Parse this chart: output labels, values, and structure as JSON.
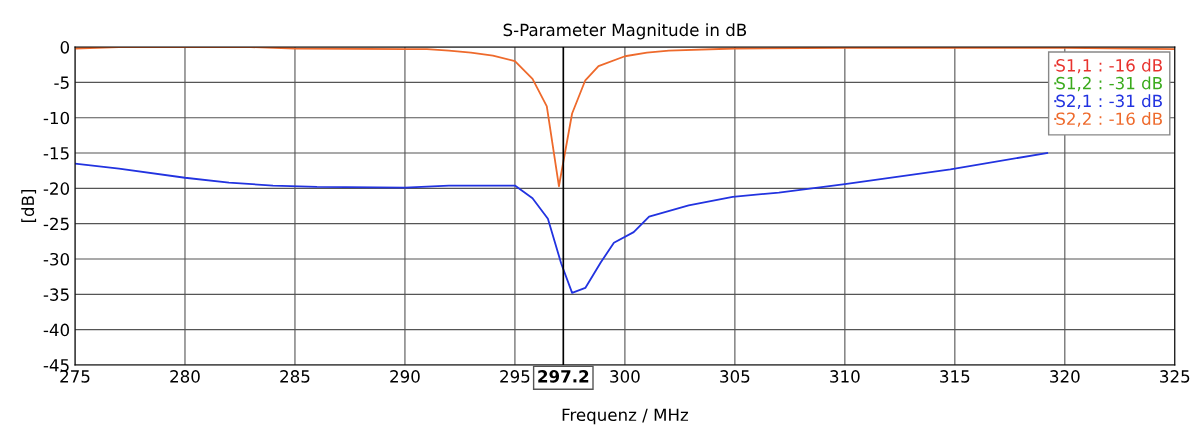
{
  "chart_data": {
    "type": "line",
    "title": "S-Parameter Magnitude in dB",
    "xlabel": "Frequenz / MHz",
    "ylabel": "[dB]",
    "xlim": [
      275,
      325
    ],
    "xticks": [
      275,
      280,
      285,
      290,
      295,
      300,
      305,
      310,
      315,
      320,
      325
    ],
    "ylim": [
      -45,
      0
    ],
    "yticks": [
      0,
      -5,
      -10,
      -15,
      -20,
      -25,
      -30,
      -35,
      -40,
      -45
    ],
    "grid": true,
    "legend": "top right",
    "marker": "none",
    "line_style": "solid",
    "ref_lines": [
      {
        "axis": "x",
        "value": 297.2,
        "label": "297.2",
        "color": "#000000"
      }
    ],
    "series": [
      {
        "name": "S1,1 : -16 dB",
        "color": "#e8322d"
      },
      {
        "name": "S1,2 : -31 dB",
        "color": "#3aaa1c"
      },
      {
        "name": "S2,1 : -31 dB",
        "color": "#2233e0",
        "x": [
          275,
          277,
          280,
          282,
          284,
          286,
          290,
          292,
          295,
          295.8,
          296.5,
          297.1,
          297.6,
          298.2,
          298.9,
          299.5,
          300.4,
          301.1,
          302.9,
          304.9,
          307,
          310,
          314.8,
          319.2
        ],
        "values": [
          -16.5,
          -17.2,
          -18.5,
          -19.2,
          -19.6,
          -19.8,
          -19.9,
          -19.6,
          -19.6,
          -21.4,
          -24.3,
          -30.6,
          -34.8,
          -34.1,
          -30.5,
          -27.7,
          -26.2,
          -24.0,
          -22.4,
          -21.2,
          -20.6,
          -19.4,
          -17.3,
          -15.0
        ]
      },
      {
        "name": "S2,2 : -16 dB",
        "color": "#ee6a2c",
        "x": [
          275,
          277,
          283,
          285,
          290,
          291,
          292,
          293,
          294,
          295,
          295.8,
          296.45,
          297.0,
          297.6,
          298.2,
          298.8,
          300,
          301,
          302,
          305,
          310,
          320,
          325
        ],
        "values": [
          -0.2,
          0,
          0,
          -0.2,
          -0.3,
          -0.3,
          -0.5,
          -0.8,
          -1.2,
          -2.0,
          -4.5,
          -8.4,
          -19.7,
          -9.4,
          -4.7,
          -2.7,
          -1.3,
          -0.8,
          -0.5,
          -0.2,
          -0.1,
          -0.1,
          -0.3
        ]
      }
    ]
  }
}
